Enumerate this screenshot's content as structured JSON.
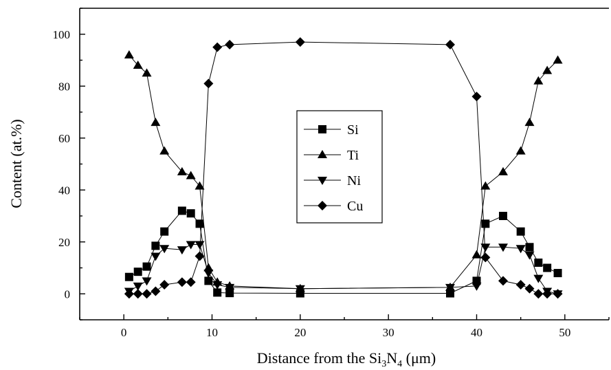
{
  "chart_data": {
    "type": "line",
    "xlabel_prefix": "Distance from the Si",
    "xlabel_sub1": "3",
    "xlabel_mid": "N",
    "xlabel_sub2": "4",
    "xlabel_suffix": " (μm)",
    "ylabel": "Content (at.%)",
    "xlim": [
      -5,
      55
    ],
    "ylim": [
      -10,
      110
    ],
    "x_ticks": [
      0,
      10,
      20,
      30,
      40,
      50
    ],
    "y_ticks": [
      0,
      20,
      40,
      60,
      80,
      100
    ],
    "legend_position": "center",
    "grid": false,
    "series": [
      {
        "name": "Si",
        "marker": "square",
        "x": [
          0.6,
          1.6,
          2.6,
          3.6,
          4.6,
          6.6,
          7.6,
          8.6,
          9.6,
          10.6,
          12,
          20,
          37,
          40,
          41,
          43,
          45,
          46,
          47,
          48,
          49.2
        ],
        "y": [
          6.5,
          8.5,
          10.5,
          18.5,
          24,
          32,
          31,
          27,
          5,
          0.5,
          0.3,
          0.2,
          0.2,
          5,
          27,
          30,
          24,
          18,
          12,
          10,
          8
        ]
      },
      {
        "name": "Ti",
        "marker": "triangle-up",
        "x": [
          0.6,
          1.6,
          2.6,
          3.6,
          4.6,
          6.6,
          7.6,
          8.6,
          9.6,
          10.6,
          12,
          20,
          37,
          40,
          41,
          43,
          45,
          46,
          47,
          48,
          49.2
        ],
        "y": [
          92,
          88,
          85,
          66,
          55,
          47,
          45.5,
          41.5,
          10,
          4.5,
          3,
          2,
          2.5,
          15,
          41.5,
          47,
          55,
          66,
          82,
          86,
          90
        ]
      },
      {
        "name": "Ni",
        "marker": "triangle-down",
        "x": [
          0.6,
          1.6,
          2.6,
          3.6,
          4.6,
          6.6,
          7.6,
          8.6,
          9.6,
          10.6,
          12,
          20,
          37,
          40,
          41,
          43,
          45,
          46,
          47,
          48,
          49.2
        ],
        "y": [
          1,
          3,
          5,
          14.5,
          17.5,
          17,
          19,
          19,
          8,
          3.5,
          2.5,
          2,
          2.5,
          3,
          18,
          18,
          17.5,
          15,
          6,
          1,
          0
        ]
      },
      {
        "name": "Cu",
        "marker": "diamond",
        "x": [
          0.6,
          1.6,
          2.6,
          3.6,
          4.6,
          6.6,
          7.6,
          8.6,
          9.6,
          10.6,
          12,
          20,
          37,
          40,
          41,
          43,
          45,
          46,
          47,
          48,
          49.2
        ],
        "y": [
          0,
          0,
          0,
          1,
          3.5,
          4.5,
          4.5,
          14.5,
          81,
          95,
          96,
          97,
          96,
          76,
          14,
          5,
          3.5,
          2,
          0,
          0,
          0
        ]
      }
    ]
  }
}
